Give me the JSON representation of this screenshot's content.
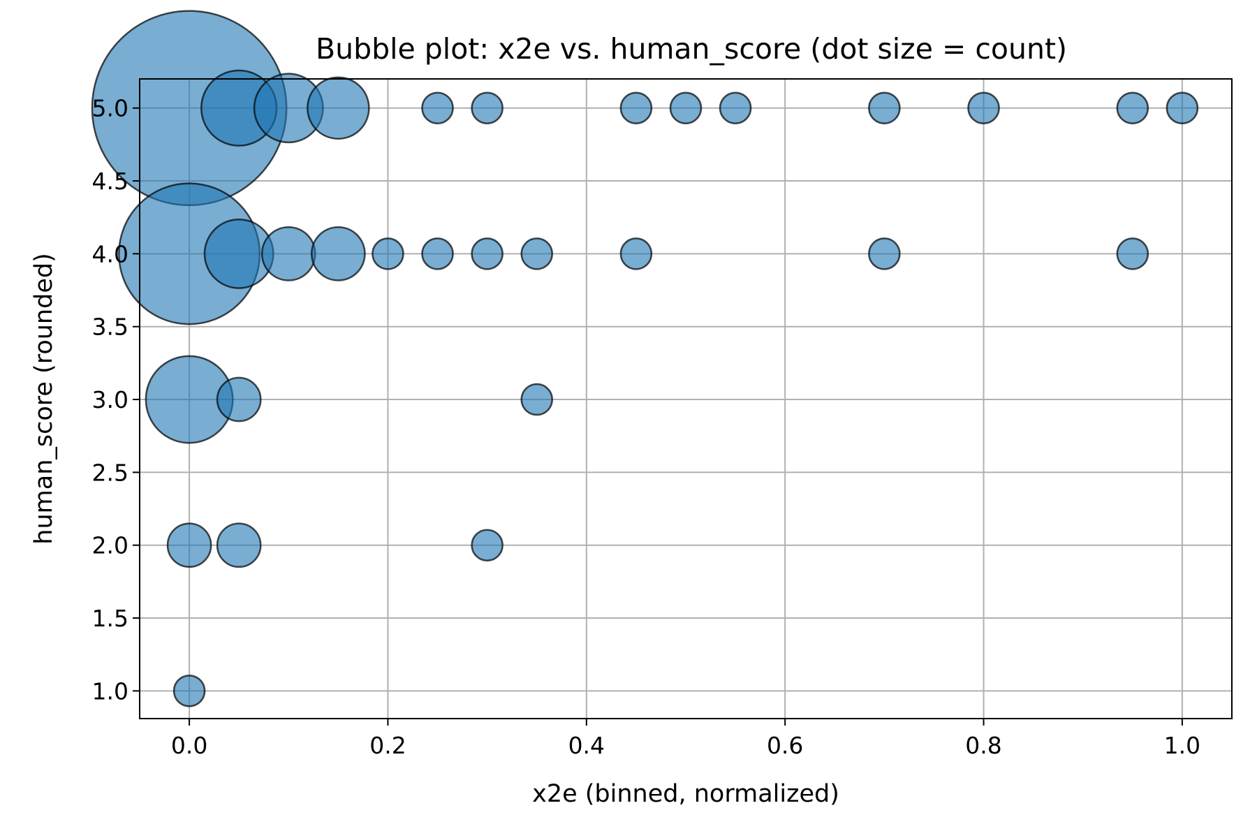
{
  "chart_data": {
    "type": "scatter",
    "title": "Bubble plot: x2e vs. human_score (dot size = count)",
    "xlabel": "x2e (binned, normalized)",
    "ylabel": "human_score (rounded)",
    "xlim": [
      -0.05,
      1.05
    ],
    "ylim": [
      0.81,
      5.2
    ],
    "xticks": [
      0.0,
      0.2,
      0.4,
      0.6,
      0.8,
      1.0
    ],
    "xtick_labels": [
      "0.0",
      "0.2",
      "0.4",
      "0.6",
      "0.8",
      "1.0"
    ],
    "yticks": [
      1.0,
      1.5,
      2.0,
      2.5,
      3.0,
      3.5,
      4.0,
      4.5,
      5.0
    ],
    "ytick_labels": [
      "1.0",
      "1.5",
      "2.0",
      "2.5",
      "3.0",
      "3.5",
      "4.0",
      "4.5",
      "5.0"
    ],
    "grid": true,
    "legend": "none",
    "size_encodes": "count",
    "colors": {
      "fill": "#1f77b4",
      "fill_opacity": 0.6,
      "edge": "#000000",
      "grid": "#b0b0b0"
    },
    "points": [
      {
        "x": 0.0,
        "y": 5.0,
        "count": 40
      },
      {
        "x": 0.05,
        "y": 5.0,
        "count": 6
      },
      {
        "x": 0.1,
        "y": 5.0,
        "count": 5
      },
      {
        "x": 0.15,
        "y": 5.0,
        "count": 4
      },
      {
        "x": 0.25,
        "y": 5.0,
        "count": 1
      },
      {
        "x": 0.3,
        "y": 5.0,
        "count": 1
      },
      {
        "x": 0.45,
        "y": 5.0,
        "count": 1
      },
      {
        "x": 0.5,
        "y": 5.0,
        "count": 1
      },
      {
        "x": 0.55,
        "y": 5.0,
        "count": 1
      },
      {
        "x": 0.7,
        "y": 5.0,
        "count": 1
      },
      {
        "x": 0.8,
        "y": 5.0,
        "count": 1
      },
      {
        "x": 0.95,
        "y": 5.0,
        "count": 1
      },
      {
        "x": 1.0,
        "y": 5.0,
        "count": 1
      },
      {
        "x": 0.0,
        "y": 4.0,
        "count": 21
      },
      {
        "x": 0.05,
        "y": 4.0,
        "count": 5
      },
      {
        "x": 0.1,
        "y": 4.0,
        "count": 3
      },
      {
        "x": 0.15,
        "y": 4.0,
        "count": 3
      },
      {
        "x": 0.2,
        "y": 4.0,
        "count": 1
      },
      {
        "x": 0.25,
        "y": 4.0,
        "count": 1
      },
      {
        "x": 0.3,
        "y": 4.0,
        "count": 1
      },
      {
        "x": 0.35,
        "y": 4.0,
        "count": 1
      },
      {
        "x": 0.45,
        "y": 4.0,
        "count": 1
      },
      {
        "x": 0.7,
        "y": 4.0,
        "count": 1
      },
      {
        "x": 0.95,
        "y": 4.0,
        "count": 1
      },
      {
        "x": 0.0,
        "y": 3.0,
        "count": 8
      },
      {
        "x": 0.05,
        "y": 3.0,
        "count": 2
      },
      {
        "x": 0.35,
        "y": 3.0,
        "count": 1
      },
      {
        "x": 0.0,
        "y": 2.0,
        "count": 2
      },
      {
        "x": 0.05,
        "y": 2.0,
        "count": 2
      },
      {
        "x": 0.3,
        "y": 2.0,
        "count": 1
      },
      {
        "x": 0.0,
        "y": 1.0,
        "count": 1
      }
    ]
  }
}
